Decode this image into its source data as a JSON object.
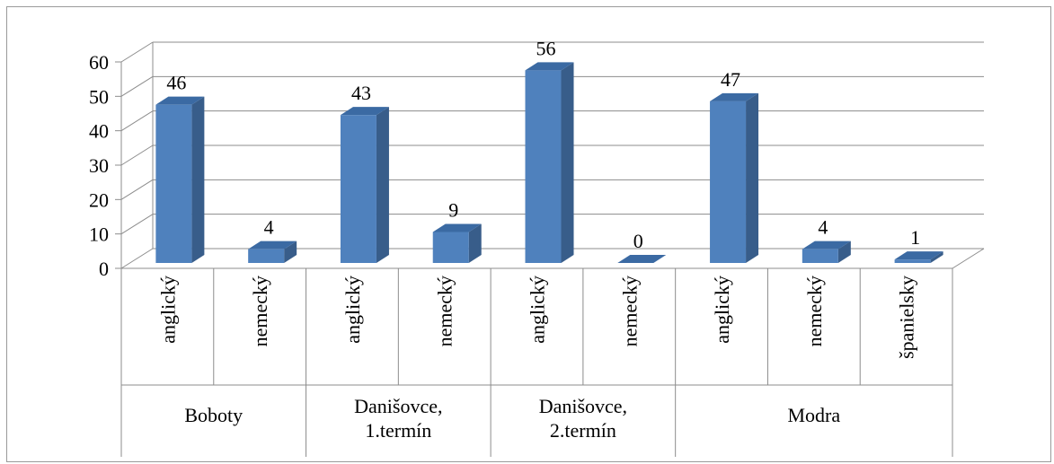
{
  "chart_data": {
    "type": "bar",
    "style": "3d-clustered-column",
    "groups": [
      {
        "label": "Boboty",
        "categories": [
          "anglický",
          "nemecký"
        ],
        "values": [
          46,
          4
        ]
      },
      {
        "label": "Danišovce, 1.termín",
        "categories": [
          "anglický",
          "nemecký"
        ],
        "values": [
          43,
          9
        ]
      },
      {
        "label": "Danišovce, 2.termín",
        "categories": [
          "anglický",
          "nemecký"
        ],
        "values": [
          56,
          0
        ]
      },
      {
        "label": "Modra",
        "categories": [
          "anglický",
          "nemecký",
          "španielsky"
        ],
        "values": [
          47,
          4,
          1
        ]
      }
    ],
    "y_ticks": [
      "0",
      "10",
      "20",
      "30",
      "40",
      "50",
      "60"
    ],
    "ylim": [
      0,
      60
    ],
    "grid": true,
    "legend": "none",
    "data_labels": true,
    "title": "",
    "xlabel": "",
    "ylabel": "",
    "bar_color": "#4f81bd",
    "bar_side_color": "#385d8a",
    "bar_top_color": "#3b6aa3"
  }
}
